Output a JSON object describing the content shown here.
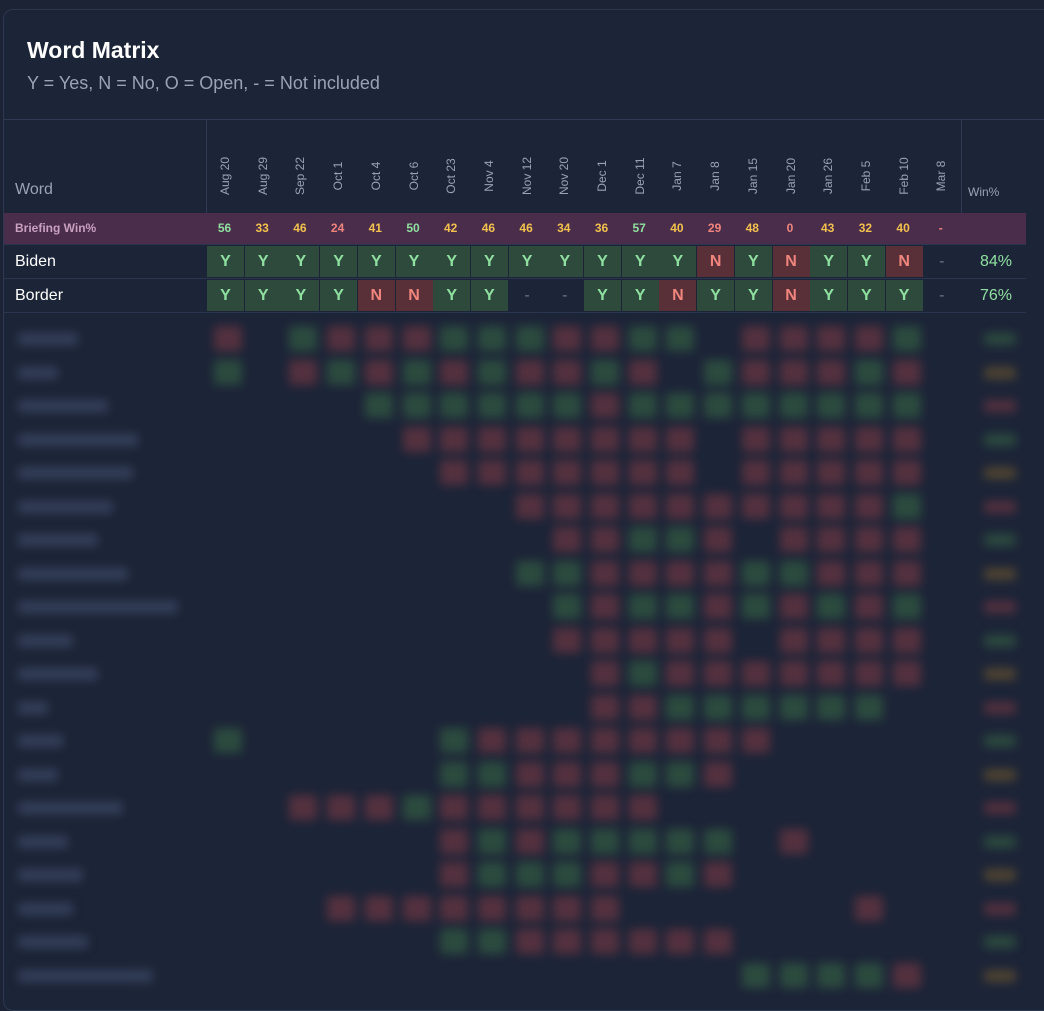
{
  "card": {
    "title": "Word Matrix",
    "subtitle": "Y = Yes, N = No, O = Open, - = Not included"
  },
  "columns": {
    "word": "Word",
    "win": "Win%",
    "dates": [
      "Aug 20",
      "Aug 29",
      "Sep 22",
      "Oct 1",
      "Oct 4",
      "Oct 6",
      "Oct 23",
      "Nov 4",
      "Nov 12",
      "Nov 20",
      "Dec 1",
      "Dec 11",
      "Jan 7",
      "Jan 8",
      "Jan 15",
      "Jan 20",
      "Jan 26",
      "Feb 5",
      "Feb 10",
      "Mar 8"
    ]
  },
  "briefing": {
    "label": "Briefing Win%",
    "values": [
      "56",
      "33",
      "46",
      "24",
      "41",
      "50",
      "42",
      "46",
      "46",
      "34",
      "36",
      "57",
      "40",
      "29",
      "48",
      "0",
      "43",
      "32",
      "40",
      "-"
    ]
  },
  "rows": [
    {
      "word": "Biden",
      "cells": [
        "Y",
        "Y",
        "Y",
        "Y",
        "Y",
        "Y",
        "Y",
        "Y",
        "Y",
        "Y",
        "Y",
        "Y",
        "Y",
        "N",
        "Y",
        "N",
        "Y",
        "Y",
        "N",
        "-"
      ],
      "win": "84%"
    },
    {
      "word": "Border",
      "cells": [
        "Y",
        "Y",
        "Y",
        "Y",
        "N",
        "N",
        "Y",
        "Y",
        "-",
        "-",
        "Y",
        "Y",
        "N",
        "Y",
        "Y",
        "N",
        "Y",
        "Y",
        "Y",
        "-"
      ],
      "win": "76%"
    }
  ],
  "colors": {
    "yes": "#8fe0a0",
    "no": "#f0857d",
    "mid": "#f2c14e",
    "briefing_bg": "#4a2d4a"
  }
}
